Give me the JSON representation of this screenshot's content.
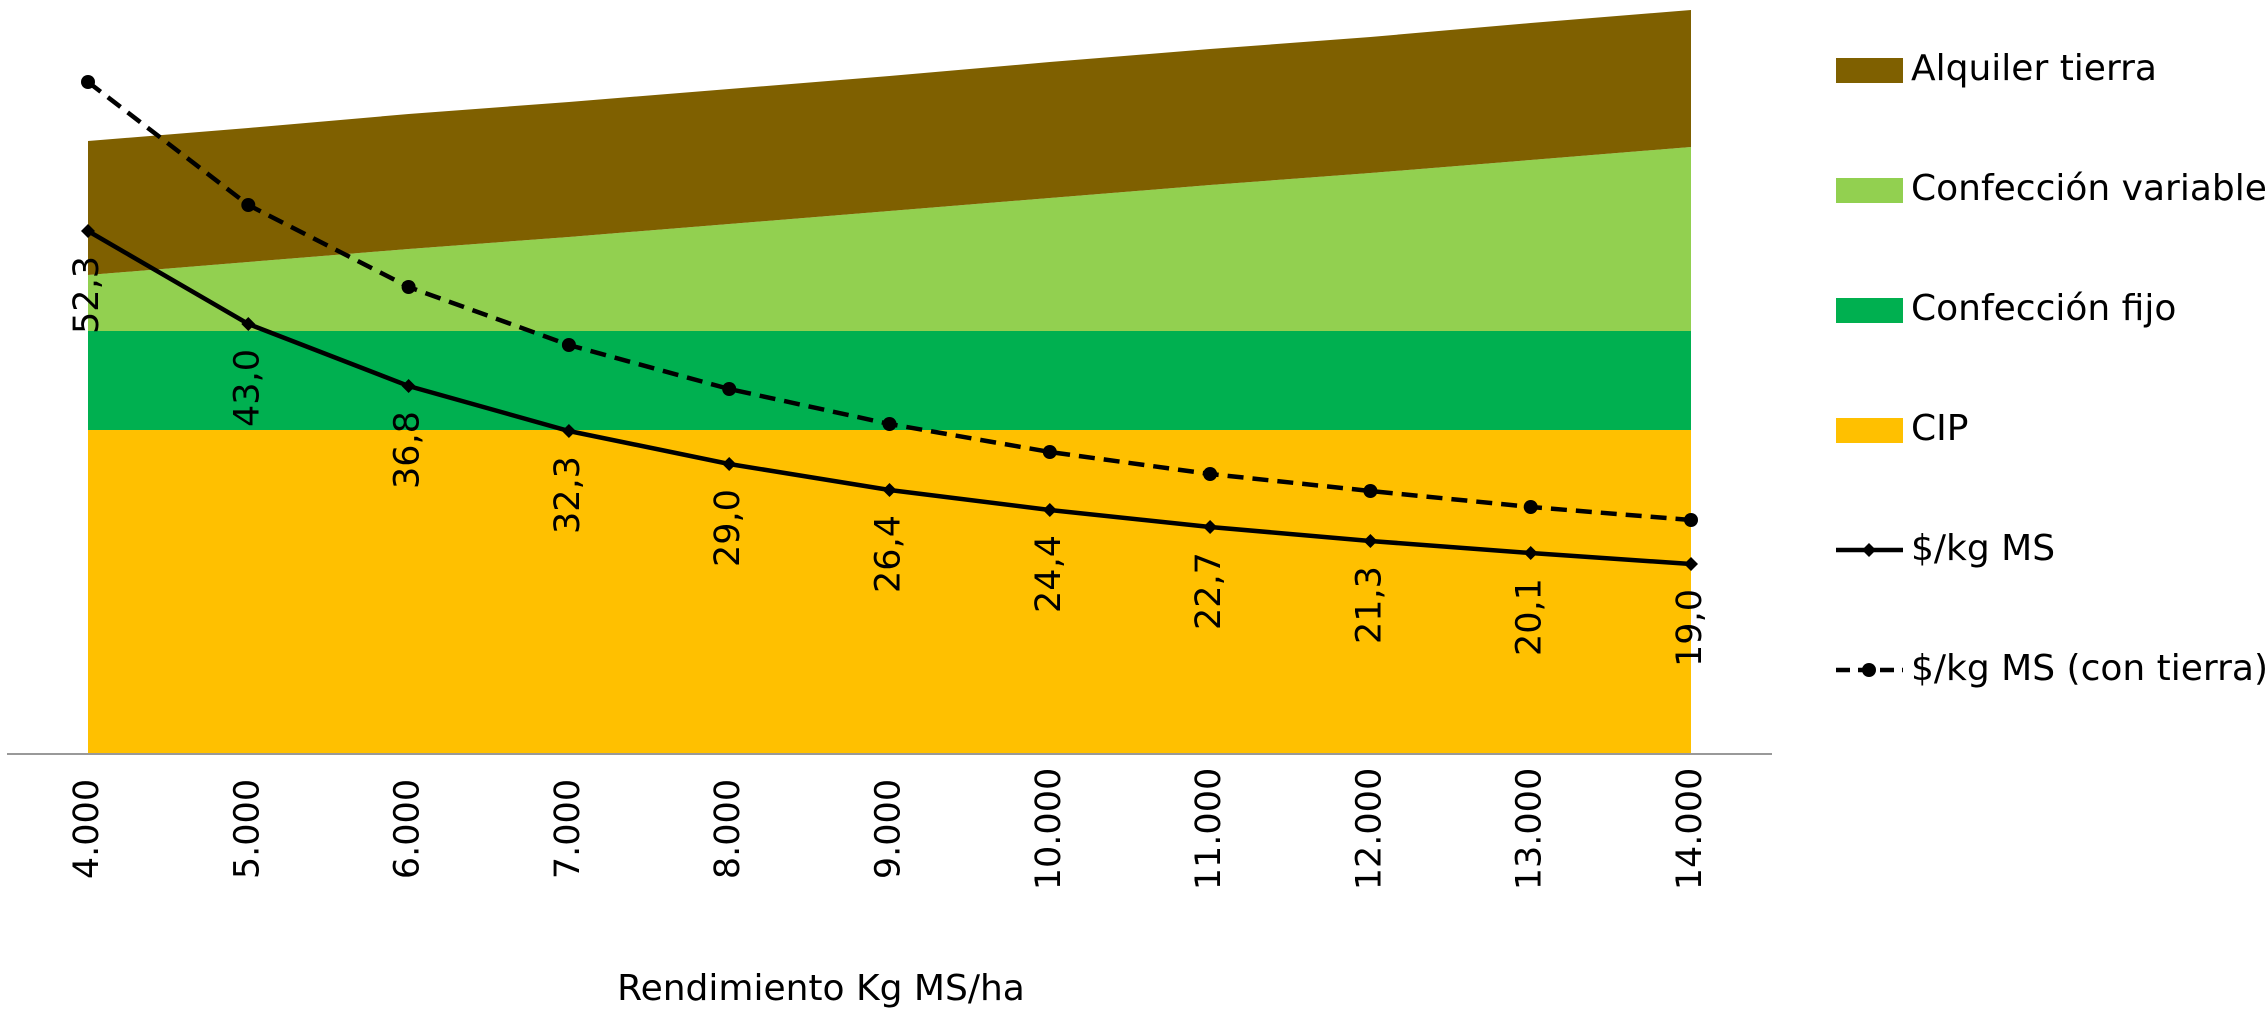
{
  "chart_data": {
    "type": "area",
    "x_label": "Rendimiento Kg MS/ha",
    "categories": [
      "4.000",
      "5.000",
      "6.000",
      "7.000",
      "8.000",
      "9.000",
      "10.000",
      "11.000",
      "12.000",
      "13.000",
      "14.000"
    ],
    "ylim": [
      0,
      75
    ],
    "series": [
      {
        "name": "CIP",
        "type": "area",
        "color": "#ffc000",
        "values": [
          32.4,
          32.4,
          32.4,
          32.4,
          32.4,
          32.4,
          32.4,
          32.4,
          32.4,
          32.4,
          32.4
        ]
      },
      {
        "name": "Confección fijo",
        "type": "area",
        "color": "#00b050",
        "values": [
          9.9,
          9.9,
          9.9,
          9.9,
          9.9,
          9.9,
          9.9,
          9.9,
          9.9,
          9.9,
          9.9
        ]
      },
      {
        "name": "Confección variable",
        "type": "area",
        "color": "#92d050",
        "values": [
          5.6,
          6.9,
          8.2,
          9.4,
          10.7,
          12.0,
          13.3,
          14.6,
          15.8,
          17.1,
          18.4
        ]
      },
      {
        "name": "Alquiler tierra",
        "type": "area",
        "color": "#7f6000",
        "values": [
          13.4,
          13.4,
          13.5,
          13.5,
          13.5,
          13.5,
          13.6,
          13.6,
          13.6,
          13.7,
          13.7
        ]
      },
      {
        "name": "$/kg MS",
        "type": "line",
        "color": "#000000",
        "dash": false,
        "marker": "diamond",
        "values": [
          52.3,
          43.0,
          36.8,
          32.3,
          29.0,
          26.4,
          24.4,
          22.7,
          21.3,
          20.1,
          19.0
        ],
        "value_labels": [
          "52,3",
          "43,0",
          "36,8",
          "32,3",
          "29,0",
          "26,4",
          "24,4",
          "22,7",
          "21,3",
          "20,1",
          "19,0"
        ]
      },
      {
        "name": "$/kg MS (con tierra)",
        "type": "line",
        "color": "#000000",
        "dash": true,
        "marker": "circle",
        "values": [
          67.2,
          54.9,
          46.7,
          40.9,
          36.5,
          33.0,
          30.2,
          28.0,
          26.3,
          24.7,
          23.4
        ]
      }
    ],
    "legend": "right"
  }
}
